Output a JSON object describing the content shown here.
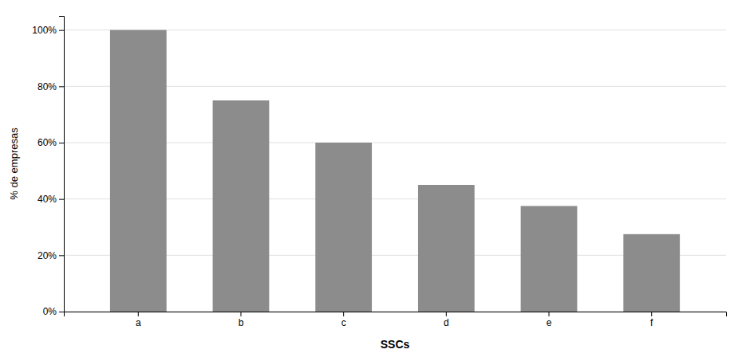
{
  "chart_data": {
    "type": "bar",
    "xlabel": "SSCs",
    "ylabel": "% de empresas",
    "categories": [
      "a",
      "b",
      "c",
      "d",
      "e",
      "f"
    ],
    "values": [
      1.0,
      0.75,
      0.6,
      0.45,
      0.375,
      0.275
    ],
    "color": "#8c8c8c",
    "ylim": [
      0,
      1.05
    ],
    "yticks": [
      {
        "value": 0,
        "label": "0%"
      },
      {
        "value": 0.2,
        "label": "20%"
      },
      {
        "value": 0.4,
        "label": "40%"
      },
      {
        "value": 0.6,
        "label": "60%"
      },
      {
        "value": 0.8,
        "label": "80%"
      },
      {
        "value": 1.0,
        "label": "100%"
      }
    ],
    "grid": true
  }
}
